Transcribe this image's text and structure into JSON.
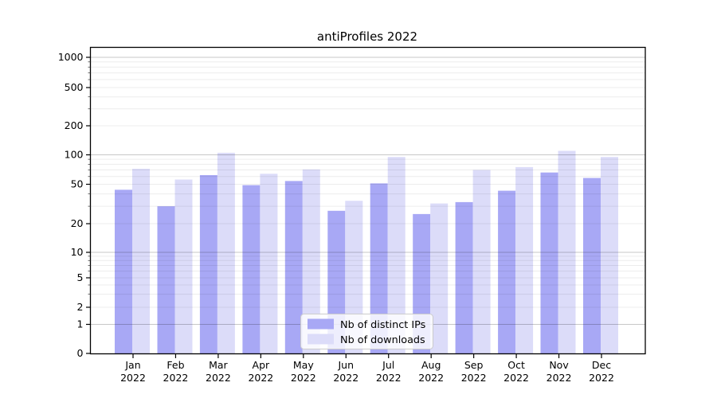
{
  "title": "antiProfiles 2022",
  "chart_data": {
    "type": "bar",
    "title": "antiProfiles 2022",
    "categories": [
      "Jan 2022",
      "Feb 2022",
      "Mar 2022",
      "Apr 2022",
      "May 2022",
      "Jun 2022",
      "Jul 2022",
      "Aug 2022",
      "Sep 2022",
      "Oct 2022",
      "Nov 2022",
      "Dec 2022"
    ],
    "series": [
      {
        "name": "Nb of distinct IPs",
        "color": "#a8a8f5",
        "values": [
          44,
          30,
          62,
          49,
          54,
          27,
          51,
          25,
          33,
          43,
          66,
          58
        ]
      },
      {
        "name": "Nb of downloads",
        "color": "#dcdcf9",
        "values": [
          72,
          56,
          105,
          64,
          71,
          34,
          95,
          32,
          70,
          75,
          110,
          95
        ]
      }
    ],
    "xlabel": "",
    "ylabel": "",
    "y_axis": {
      "scale": "log-like (0 shown at baseline)",
      "tick_labels": [
        "0",
        "1",
        "2",
        "5",
        "10",
        "20",
        "50",
        "100",
        "200",
        "500",
        "1000"
      ],
      "tick_values": [
        0,
        1,
        2,
        5,
        10,
        20,
        50,
        100,
        200,
        500,
        1000
      ],
      "ylim": [
        0,
        1400
      ]
    },
    "grid": "horizontal major + minor log gridlines, drawn over bars",
    "legend_position": "lower center inside plot",
    "legend": [
      "Nb of distinct IPs",
      "Nb of downloads"
    ]
  },
  "colors": {
    "bar_dark": "#a8a8f5",
    "bar_light": "#dcdcf9",
    "grid_major": "#c6c6c6",
    "grid_minor": "#ececec",
    "axis": "#000000",
    "legend_border": "#cccccc"
  }
}
